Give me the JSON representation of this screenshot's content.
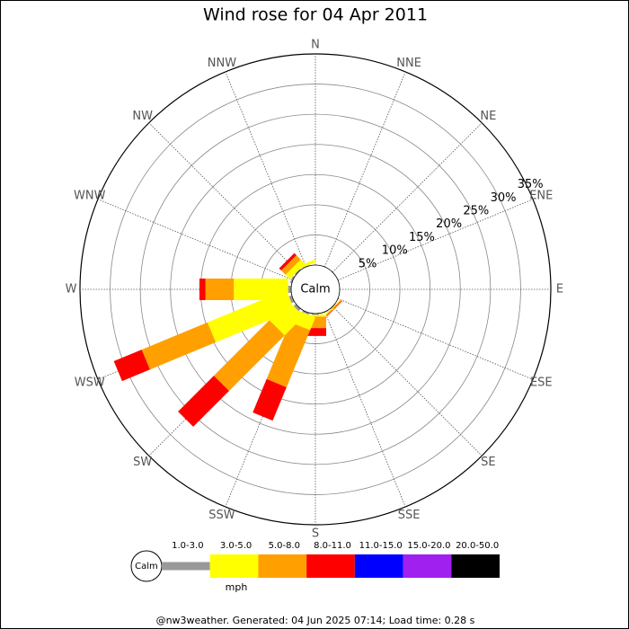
{
  "chart_data": {
    "type": "wind_rose",
    "title": "Wind rose for 04 Apr 2011",
    "directions": [
      "N",
      "NNE",
      "NE",
      "ENE",
      "E",
      "ESE",
      "SE",
      "SSE",
      "S",
      "SSW",
      "SW",
      "WSW",
      "W",
      "WNW",
      "NW",
      "NNW"
    ],
    "calm_label": "Calm",
    "rlim": [
      0,
      35
    ],
    "rticks": [
      {
        "value": 5,
        "label": "5%"
      },
      {
        "value": 10,
        "label": "10%"
      },
      {
        "value": 15,
        "label": "15%"
      },
      {
        "value": 20,
        "label": "20%"
      },
      {
        "value": 25,
        "label": "25%"
      },
      {
        "value": 30,
        "label": "30%"
      },
      {
        "value": 35,
        "label": "35%"
      }
    ],
    "series": [
      {
        "name": "1.0-3.0",
        "color": "#999999",
        "values": [
          0,
          0,
          0,
          0,
          0,
          0,
          0.1,
          0.1,
          0.2,
          0.3,
          0.5,
          0.5,
          0.5,
          0.3,
          0.2,
          0.1
        ]
      },
      {
        "name": "3.0-5.0",
        "color": "#ffff00",
        "values": [
          0,
          0,
          0,
          0,
          0,
          0,
          0.1,
          0.1,
          0.3,
          2.3,
          4.5,
          14.1,
          9,
          0,
          1,
          0.5
        ]
      },
      {
        "name": "5.0-8.0",
        "color": "#ffa000",
        "values": [
          0,
          0,
          0,
          0,
          0,
          0,
          0.2,
          0,
          1.9,
          10.2,
          13,
          11.8,
          4.7,
          0,
          1,
          0
        ]
      },
      {
        "name": "8.0-11.0",
        "color": "#ff0000",
        "values": [
          0,
          0,
          0,
          0,
          0,
          0,
          0.1,
          0,
          1.3,
          6,
          8.4,
          5,
          1,
          0,
          0.5,
          0
        ]
      },
      {
        "name": "11.0-15.0",
        "color": "#0000ff",
        "values": [
          0,
          0,
          0,
          0,
          0,
          0,
          0,
          0,
          0,
          0,
          0,
          0,
          0,
          0,
          0,
          0
        ]
      },
      {
        "name": "15.0-20.0",
        "color": "#a020f0",
        "values": [
          0,
          0,
          0,
          0,
          0,
          0,
          0,
          0,
          0,
          0,
          0,
          0,
          0,
          0,
          0,
          0
        ]
      },
      {
        "name": "20.0-50.0",
        "color": "#000000",
        "values": [
          0,
          0,
          0,
          0,
          0,
          0,
          0,
          0,
          0,
          0,
          0,
          0,
          0,
          0,
          0,
          0
        ]
      }
    ],
    "unit": "mph",
    "footer": "@nw3weather. Generated: 04 Jun 2025 07:14; Load time: 0.28 s"
  }
}
